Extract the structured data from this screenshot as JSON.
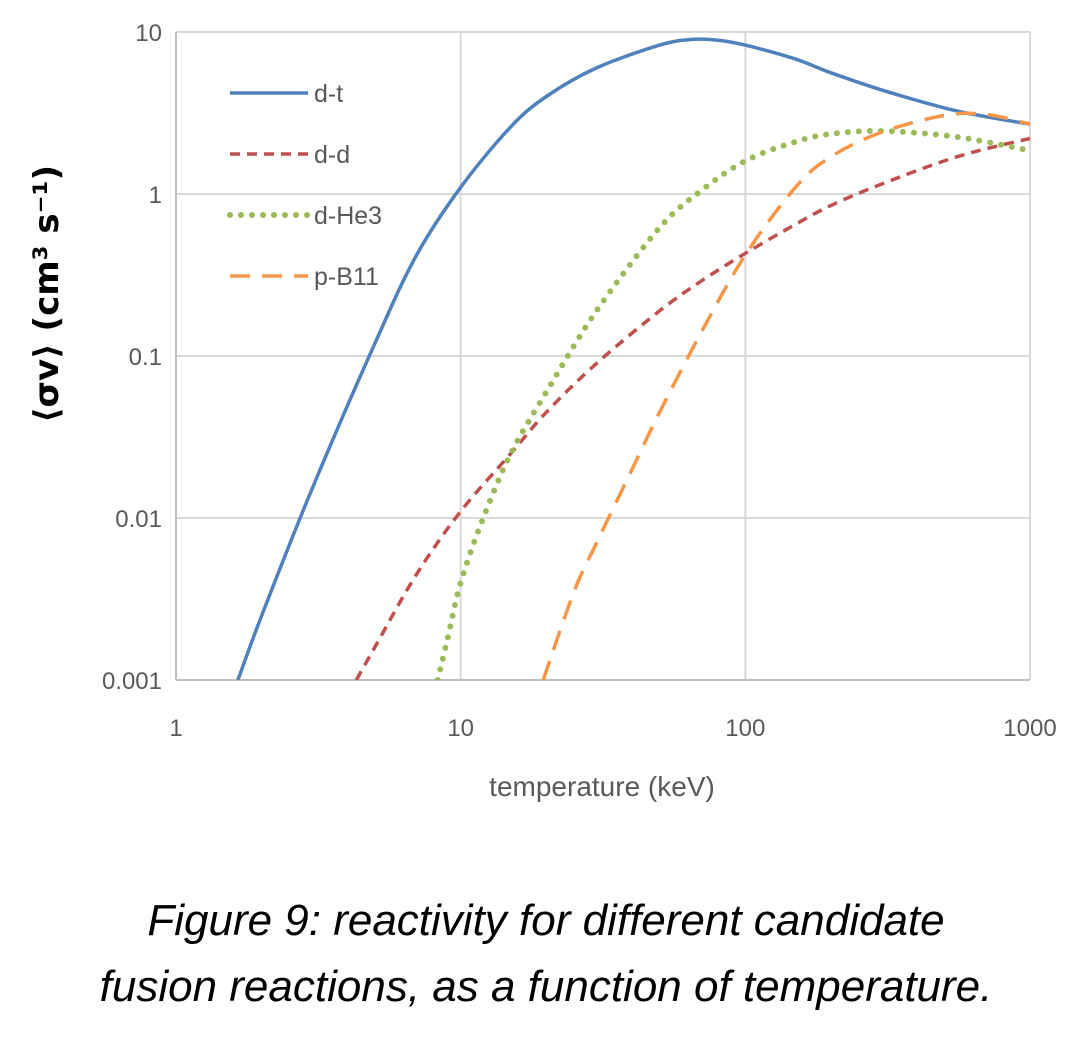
{
  "chart_data": {
    "type": "line",
    "x_scale": "log",
    "y_scale": "log",
    "xlabel": "temperature (keV)",
    "ylabel": "⟨σv⟩ (cm³ s⁻¹)",
    "xlim": [
      1,
      1000
    ],
    "ylim": [
      0.001,
      10
    ],
    "x_ticks": [
      1,
      10,
      100,
      1000
    ],
    "x_tick_labels": [
      "1",
      "10",
      "100",
      "1000"
    ],
    "y_ticks": [
      0.001,
      0.01,
      0.1,
      1,
      10
    ],
    "y_tick_labels": [
      "0.001",
      "0.01",
      "0.1",
      "1",
      "10"
    ],
    "grid": true,
    "legend_position": "top-left",
    "series": [
      {
        "name": "d-t",
        "color": "#4f81bd",
        "style": "solid",
        "x": [
          1.65,
          2,
          3,
          5,
          7,
          10,
          15,
          20,
          30,
          50,
          65,
          80,
          100,
          150,
          200,
          300,
          500,
          700,
          1000
        ],
        "y": [
          0.001,
          0.0025,
          0.015,
          0.12,
          0.42,
          1.1,
          2.6,
          4.0,
          6.0,
          8.3,
          9.0,
          8.9,
          8.3,
          6.8,
          5.6,
          4.4,
          3.4,
          3.0,
          2.7
        ]
      },
      {
        "name": "d-d",
        "color": "#c0504d",
        "style": "dashed",
        "x": [
          4.3,
          5,
          7,
          10,
          15,
          20,
          30,
          50,
          70,
          100,
          150,
          200,
          300,
          500,
          700,
          1000
        ],
        "y": [
          0.001,
          0.0016,
          0.0045,
          0.011,
          0.025,
          0.045,
          0.09,
          0.19,
          0.29,
          0.43,
          0.65,
          0.85,
          1.15,
          1.6,
          1.9,
          2.2
        ]
      },
      {
        "name": "d-He3",
        "color": "#9bbb59",
        "style": "dotted",
        "x": [
          8.3,
          9,
          10,
          12,
          15,
          20,
          30,
          50,
          70,
          100,
          150,
          200,
          300,
          500,
          700,
          1000
        ],
        "y": [
          0.001,
          0.0018,
          0.004,
          0.01,
          0.025,
          0.06,
          0.19,
          0.62,
          1.05,
          1.6,
          2.1,
          2.35,
          2.45,
          2.3,
          2.1,
          1.85
        ]
      },
      {
        "name": "p-B11",
        "color": "#f79646",
        "style": "dashed",
        "x": [
          19.5,
          25,
          30,
          40,
          50,
          70,
          100,
          150,
          200,
          300,
          500,
          700,
          1000
        ],
        "y": [
          0.001,
          0.0035,
          0.007,
          0.02,
          0.045,
          0.14,
          0.42,
          1.1,
          1.7,
          2.4,
          3.05,
          3.1,
          2.7
        ]
      }
    ]
  },
  "caption": {
    "line1": "Figure 9: reactivity for different candidate",
    "line2": "fusion reactions, as a function of temperature."
  }
}
